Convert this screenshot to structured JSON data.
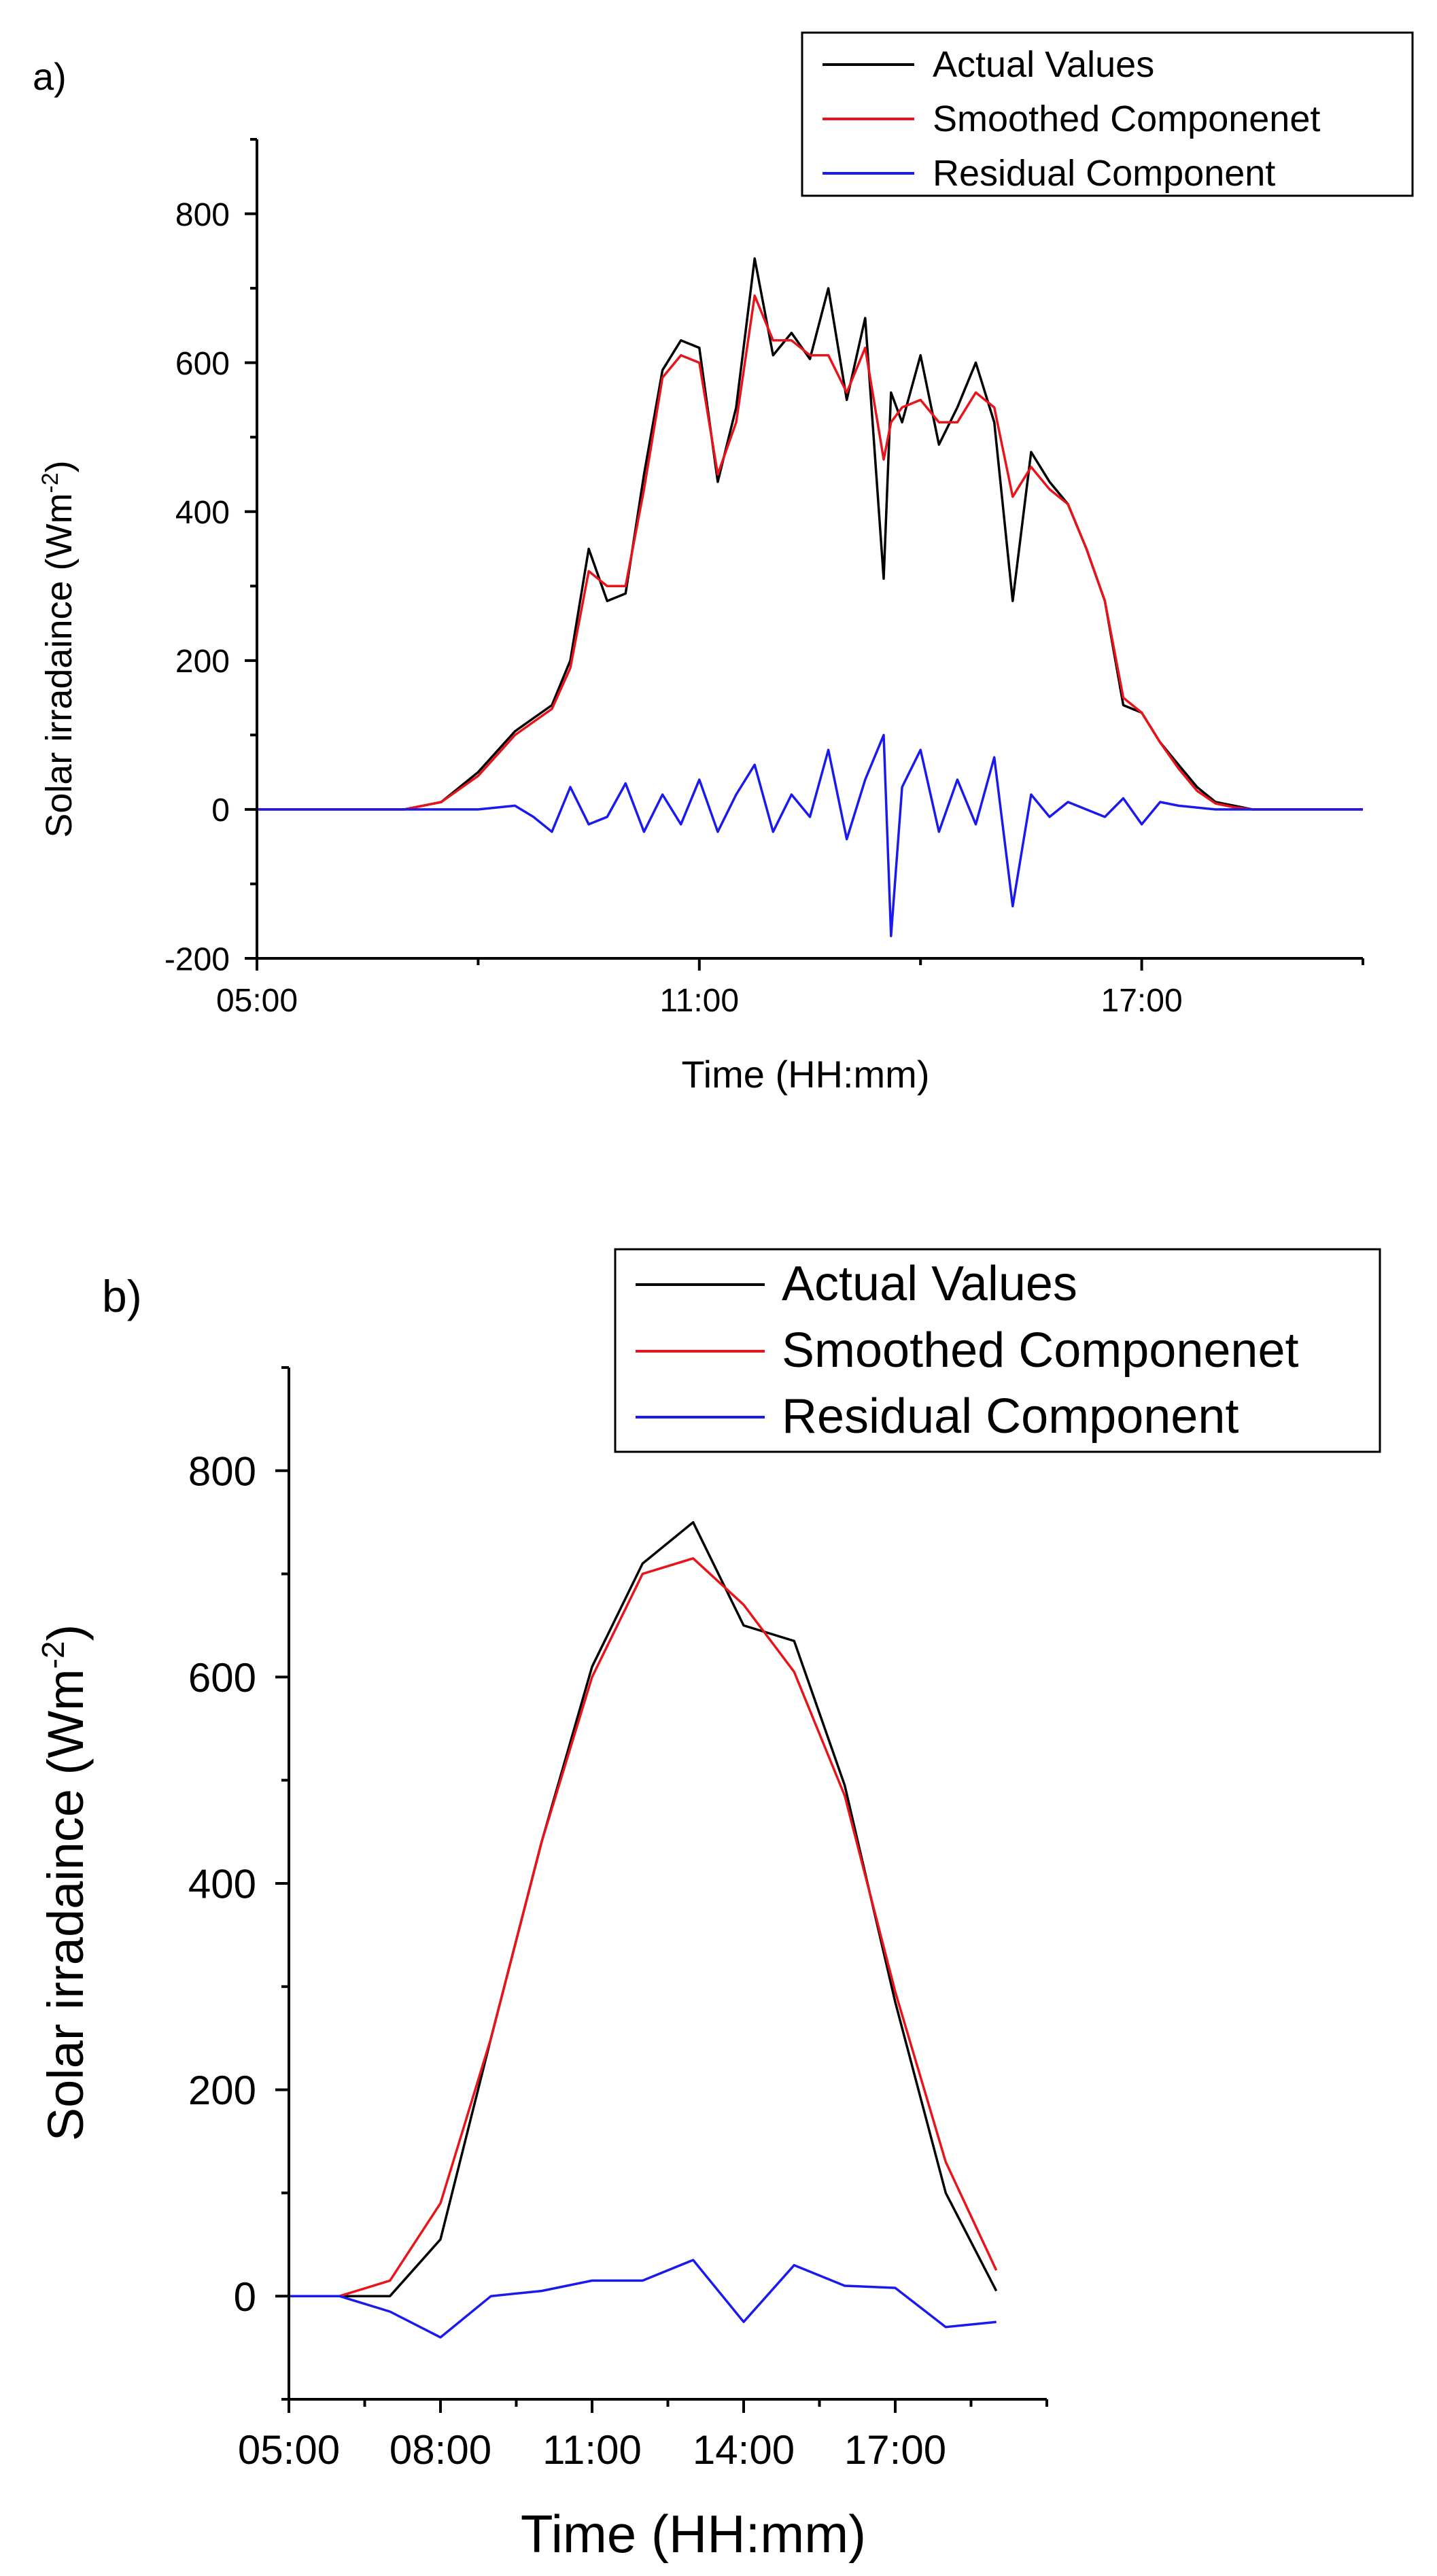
{
  "figure": {
    "panels": [
      "a)",
      "b)"
    ]
  },
  "colors": {
    "actual": "#000000",
    "smoothed": "#e8141a",
    "residual": "#1a1aee",
    "axis": "#000000"
  },
  "chart_data": [
    {
      "panel": "a)",
      "type": "line",
      "title": "",
      "xlabel": "Time (HH:mm)",
      "ylabel_main": "Solar irradaince (Wm",
      "ylabel_sup": "-2",
      "ylabel_close": ")",
      "xlim": [
        5,
        20
      ],
      "ylim": [
        -200,
        900
      ],
      "xticks": [
        5,
        11,
        17
      ],
      "xtick_labels": [
        "05:00",
        "11:00",
        "17:00"
      ],
      "yticks": [
        -200,
        0,
        200,
        400,
        600,
        800
      ],
      "ytick_labels": [
        "-200",
        "0",
        "200",
        "400",
        "600",
        "800"
      ],
      "legend": [
        "Actual Values",
        "Smoothed Componenet",
        "Residual Component"
      ],
      "legend_position": "top-right",
      "series": [
        {
          "name": "Actual Values",
          "color": "#000000",
          "x": [
            5,
            7,
            7.5,
            8,
            8.5,
            9,
            9.25,
            9.5,
            9.75,
            10,
            10.25,
            10.5,
            10.75,
            11,
            11.25,
            11.5,
            11.75,
            12,
            12.25,
            12.5,
            12.75,
            13,
            13.25,
            13.5,
            13.6,
            13.75,
            14,
            14.25,
            14.5,
            14.75,
            15,
            15.25,
            15.5,
            15.75,
            16,
            16.25,
            16.5,
            16.75,
            17,
            17.25,
            17.5,
            17.75,
            18,
            18.25,
            18.5,
            19,
            20
          ],
          "y": [
            0,
            0,
            10,
            50,
            105,
            140,
            200,
            350,
            280,
            290,
            450,
            590,
            630,
            620,
            440,
            540,
            740,
            610,
            640,
            605,
            700,
            550,
            660,
            310,
            560,
            520,
            610,
            490,
            540,
            600,
            520,
            280,
            480,
            440,
            410,
            350,
            280,
            140,
            130,
            90,
            60,
            30,
            10,
            5,
            0,
            0,
            0
          ]
        },
        {
          "name": "Smoothed Componenet",
          "color": "#e8141a",
          "x": [
            5,
            7,
            7.5,
            8,
            8.5,
            9,
            9.25,
            9.5,
            9.75,
            10,
            10.25,
            10.5,
            10.75,
            11,
            11.25,
            11.5,
            11.75,
            12,
            12.25,
            12.5,
            12.75,
            13,
            13.25,
            13.5,
            13.6,
            13.75,
            14,
            14.25,
            14.5,
            14.75,
            15,
            15.25,
            15.5,
            15.75,
            16,
            16.25,
            16.5,
            16.75,
            17,
            17.25,
            17.5,
            17.75,
            18,
            18.25,
            18.5,
            19,
            20
          ],
          "y": [
            0,
            0,
            10,
            45,
            100,
            135,
            190,
            320,
            300,
            300,
            430,
            580,
            610,
            600,
            450,
            520,
            690,
            630,
            630,
            610,
            610,
            560,
            620,
            470,
            520,
            540,
            550,
            520,
            520,
            560,
            540,
            420,
            460,
            430,
            410,
            350,
            280,
            150,
            130,
            90,
            55,
            25,
            8,
            3,
            0,
            0,
            0
          ]
        },
        {
          "name": "Residual Component",
          "color": "#1a1aee",
          "x": [
            5,
            8,
            8.5,
            8.75,
            9,
            9.25,
            9.5,
            9.75,
            10,
            10.25,
            10.5,
            10.75,
            11,
            11.25,
            11.5,
            11.75,
            12,
            12.25,
            12.5,
            12.75,
            13,
            13.25,
            13.5,
            13.6,
            13.75,
            14,
            14.25,
            14.5,
            14.75,
            15,
            15.25,
            15.5,
            15.75,
            16,
            16.5,
            16.75,
            17,
            17.25,
            17.5,
            18,
            20
          ],
          "y": [
            0,
            0,
            5,
            -10,
            -30,
            30,
            -20,
            -10,
            35,
            -30,
            20,
            -20,
            40,
            -30,
            20,
            60,
            -30,
            20,
            -10,
            80,
            -40,
            40,
            100,
            -170,
            30,
            80,
            -30,
            40,
            -20,
            70,
            -130,
            20,
            -10,
            10,
            -10,
            15,
            -20,
            10,
            5,
            0,
            0
          ]
        }
      ]
    },
    {
      "panel": "b)",
      "type": "line",
      "title": "",
      "xlabel": "Time (HH:mm)",
      "ylabel_main": "Solar irradaince (Wm",
      "ylabel_sup": "-2",
      "ylabel_close": ")",
      "xlim": [
        5,
        20
      ],
      "ylim": [
        -100,
        900
      ],
      "xticks": [
        5,
        8,
        11,
        14,
        17
      ],
      "xtick_labels": [
        "05:00",
        "08:00",
        "11:00",
        "14:00",
        "17:00"
      ],
      "yticks": [
        0,
        200,
        400,
        600,
        800
      ],
      "ytick_labels": [
        "0",
        "200",
        "400",
        "600",
        "800"
      ],
      "legend": [
        "Actual Values",
        "Smoothed Componenet",
        "Residual Component"
      ],
      "legend_position": "top-right",
      "series": [
        {
          "name": "Actual Values",
          "color": "#000000",
          "x": [
            5,
            6,
            7,
            8,
            9,
            10,
            11,
            12,
            13,
            14,
            15,
            16,
            17,
            18,
            19
          ],
          "y": [
            0,
            0,
            0,
            55,
            250,
            440,
            610,
            710,
            750,
            650,
            635,
            495,
            285,
            100,
            5
          ]
        },
        {
          "name": "Smoothed Componenet",
          "color": "#e8141a",
          "x": [
            5,
            6,
            7,
            8,
            9,
            10,
            11,
            12,
            13,
            14,
            15,
            16,
            17,
            18,
            19
          ],
          "y": [
            0,
            0,
            15,
            90,
            250,
            440,
            600,
            700,
            715,
            670,
            605,
            485,
            295,
            130,
            25
          ]
        },
        {
          "name": "Residual Component",
          "color": "#1a1aee",
          "x": [
            5,
            6,
            7,
            8,
            9,
            10,
            11,
            12,
            13,
            14,
            15,
            16,
            17,
            18,
            19
          ],
          "y": [
            0,
            0,
            -15,
            -40,
            0,
            5,
            15,
            15,
            35,
            -25,
            30,
            10,
            8,
            -30,
            -25
          ]
        }
      ]
    }
  ]
}
